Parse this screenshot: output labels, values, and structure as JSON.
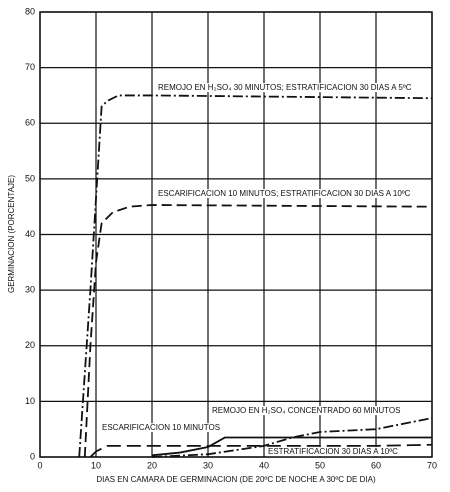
{
  "chart_data": {
    "type": "line",
    "x_label": "DIAS EN CAMARA DE GERMINACION (DE 20ºC DE NOCHE A 30ºC DE DIA)",
    "y_label": "GERMINACION (PORCENTAJE)",
    "xlim": [
      0,
      70
    ],
    "xticks": [
      0,
      10,
      20,
      30,
      40,
      50,
      60,
      70
    ],
    "ylim": [
      0,
      80
    ],
    "yticks": [
      0,
      10,
      20,
      30,
      40,
      50,
      60,
      70,
      80
    ],
    "grid": true,
    "series": [
      {
        "name": "REMOJO EN H₂SO₄ 30 MINUTOS; ESTRATIFICACION 30 DIAS A 5ºC",
        "color": "#111",
        "dash": "dashdot",
        "x": [
          7,
          9,
          11,
          12,
          14,
          20,
          70
        ],
        "values": [
          0,
          30,
          63,
          64,
          65,
          65,
          64.5
        ]
      },
      {
        "name": "ESCARIFICACION 10 MINUTOS; ESTRATIFICACION 30 DIAS A 10ºC",
        "color": "#111",
        "dash": "dashed",
        "x": [
          8,
          9,
          10,
          11,
          13,
          16,
          20,
          70
        ],
        "values": [
          0,
          20,
          35,
          42,
          44,
          45,
          45.3,
          45
        ]
      },
      {
        "name": "ESCARIFICACION 10 MINUTOS",
        "color": "#111",
        "dash": "longdash",
        "x": [
          9,
          10,
          12,
          20,
          30,
          40,
          50,
          60,
          70
        ],
        "values": [
          0,
          1,
          2,
          2,
          2,
          2,
          2,
          2,
          2.2
        ]
      },
      {
        "name": "ESTRATIFICACION 30 DIAS A 10ºC",
        "color": "#111",
        "dash": "solid",
        "x": [
          20,
          25,
          30,
          33,
          40,
          50,
          60,
          70
        ],
        "values": [
          0.3,
          0.8,
          1.8,
          3.5,
          3.5,
          3.5,
          3.5,
          3.5
        ]
      },
      {
        "name": "REMOJO EN H₂SO₄ CONCENTRADO 60 MINUTOS",
        "color": "#111",
        "dash": "dashdot",
        "x": [
          20,
          30,
          40,
          45,
          50,
          60,
          65,
          70
        ],
        "values": [
          0,
          0.5,
          2,
          3.5,
          4.5,
          5,
          6,
          7
        ]
      }
    ]
  }
}
